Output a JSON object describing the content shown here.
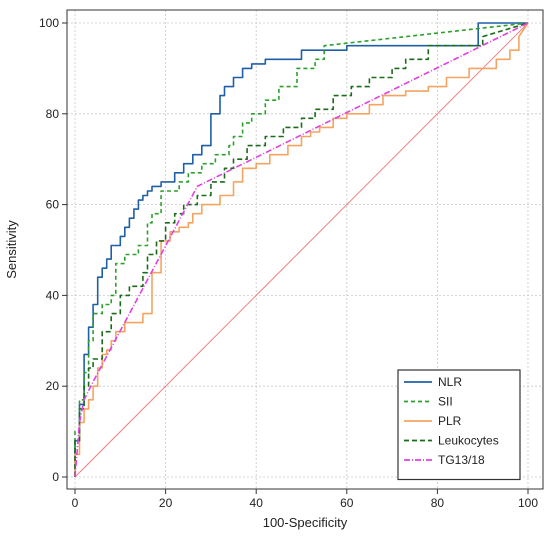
{
  "chart_data": {
    "type": "line",
    "title": "",
    "xlabel": "100-Specificity",
    "ylabel": "Sensitivity",
    "xlim": [
      0,
      100
    ],
    "ylim": [
      0,
      100
    ],
    "xticks": [
      0,
      20,
      40,
      60,
      80,
      100
    ],
    "yticks": [
      0,
      20,
      40,
      60,
      80,
      100
    ],
    "grid": true,
    "legend_position": "bottom-right",
    "reference_line": {
      "x": [
        0,
        100
      ],
      "y": [
        0,
        100
      ],
      "color": "#f08080"
    },
    "series": [
      {
        "name": "NLR",
        "color": "#1f5fa8",
        "dash": "solid",
        "x": [
          0,
          0,
          1,
          1,
          2,
          2,
          3,
          3,
          4,
          4,
          5,
          5,
          6,
          6,
          7,
          7,
          8,
          8,
          10,
          10,
          11,
          11,
          12,
          12,
          13,
          13,
          14,
          14,
          15,
          15,
          16,
          16,
          17,
          17,
          19,
          19,
          22,
          22,
          24,
          24,
          26,
          26,
          28,
          28,
          30,
          30,
          32,
          32,
          33,
          33,
          35,
          35,
          37,
          37,
          39,
          39,
          42,
          42,
          50,
          50,
          60,
          60,
          89,
          89,
          100
        ],
        "y": [
          0,
          8,
          8,
          16,
          16,
          27,
          27,
          33,
          33,
          38,
          38,
          44,
          44,
          46,
          46,
          48,
          48,
          51,
          51,
          53,
          53,
          55,
          55,
          57,
          57,
          59,
          59,
          61,
          61,
          62,
          62,
          63,
          63,
          64,
          64,
          65,
          65,
          67,
          67,
          69,
          69,
          71,
          71,
          73,
          73,
          80,
          80,
          84,
          84,
          86,
          86,
          88,
          88,
          90,
          90,
          91,
          91,
          92,
          92,
          94,
          94,
          95,
          95,
          100,
          100
        ]
      },
      {
        "name": "SII",
        "color": "#2ca02c",
        "dash": "4,3",
        "x": [
          0,
          0,
          1,
          1,
          2,
          2,
          3,
          3,
          4,
          4,
          6,
          6,
          8,
          8,
          9,
          9,
          11,
          11,
          14,
          14,
          16,
          16,
          17,
          17,
          19,
          19,
          23,
          23,
          25,
          25,
          28,
          28,
          31,
          31,
          34,
          34,
          35,
          35,
          37,
          37,
          39,
          39,
          42,
          42,
          45,
          45,
          49,
          49,
          53,
          53,
          55,
          55,
          100
        ],
        "y": [
          0,
          10,
          10,
          17,
          17,
          23,
          23,
          30,
          30,
          36,
          36,
          38,
          38,
          40,
          40,
          47,
          47,
          49,
          49,
          51,
          51,
          56,
          56,
          58,
          58,
          63,
          63,
          65,
          65,
          67,
          67,
          69,
          69,
          71,
          71,
          73,
          73,
          75,
          75,
          78,
          78,
          80,
          80,
          83,
          83,
          86,
          86,
          90,
          90,
          92,
          92,
          95,
          100
        ]
      },
      {
        "name": "PLR",
        "color": "#f4a460",
        "dash": "solid",
        "x": [
          0,
          0,
          1,
          1,
          2,
          2,
          3,
          3,
          4,
          4,
          5,
          5,
          6,
          6,
          7,
          7,
          8,
          8,
          9,
          9,
          11,
          11,
          15,
          15,
          17,
          17,
          19,
          19,
          21,
          21,
          23,
          23,
          25,
          25,
          26,
          26,
          28,
          28,
          32,
          32,
          35,
          35,
          37,
          37,
          40,
          40,
          43,
          43,
          47,
          47,
          50,
          50,
          52,
          52,
          54,
          54,
          57,
          57,
          60,
          60,
          65,
          65,
          68,
          68,
          73,
          73,
          78,
          78,
          82,
          82,
          87,
          87,
          93,
          93,
          96,
          96,
          98,
          98,
          100
        ],
        "y": [
          0,
          5,
          5,
          12,
          12,
          15,
          15,
          17,
          17,
          20,
          20,
          24,
          24,
          27,
          27,
          28,
          28,
          30,
          30,
          32,
          32,
          34,
          34,
          36,
          36,
          45,
          45,
          52,
          52,
          54,
          54,
          55,
          55,
          56,
          56,
          58,
          58,
          60,
          60,
          62,
          62,
          65,
          65,
          68,
          68,
          69,
          69,
          71,
          71,
          73,
          73,
          75,
          75,
          76,
          76,
          77,
          77,
          79,
          79,
          80,
          80,
          82,
          82,
          84,
          84,
          85,
          85,
          86,
          86,
          88,
          88,
          90,
          90,
          92,
          92,
          94,
          94,
          97,
          100
        ]
      },
      {
        "name": "Leukocytes",
        "color": "#1a6b1a",
        "dash": "5,3",
        "x": [
          0,
          0,
          1,
          1,
          2,
          2,
          3,
          3,
          4,
          4,
          6,
          6,
          8,
          8,
          10,
          10,
          12,
          12,
          15,
          15,
          16,
          16,
          18,
          18,
          20,
          20,
          22,
          22,
          24,
          24,
          27,
          27,
          30,
          30,
          33,
          33,
          35,
          35,
          38,
          38,
          42,
          42,
          46,
          46,
          50,
          50,
          53,
          53,
          57,
          57,
          61,
          61,
          65,
          65,
          70,
          70,
          73,
          73,
          78,
          78,
          90,
          90,
          100
        ],
        "y": [
          0,
          8,
          8,
          15,
          15,
          20,
          20,
          24,
          24,
          26,
          26,
          32,
          32,
          36,
          36,
          40,
          40,
          42,
          42,
          45,
          45,
          49,
          49,
          52,
          52,
          56,
          56,
          58,
          58,
          60,
          60,
          62,
          62,
          65,
          65,
          68,
          68,
          70,
          70,
          73,
          73,
          75,
          75,
          77,
          77,
          79,
          79,
          81,
          81,
          84,
          84,
          86,
          86,
          88,
          88,
          90,
          90,
          92,
          92,
          95,
          95,
          97,
          100
        ]
      },
      {
        "name": "TG13/18",
        "color": "#e040e0",
        "dash": "6,2,1,2",
        "x": [
          0,
          1,
          2,
          4,
          27,
          100
        ],
        "y": [
          0,
          12,
          17,
          21,
          64,
          100
        ]
      }
    ]
  }
}
